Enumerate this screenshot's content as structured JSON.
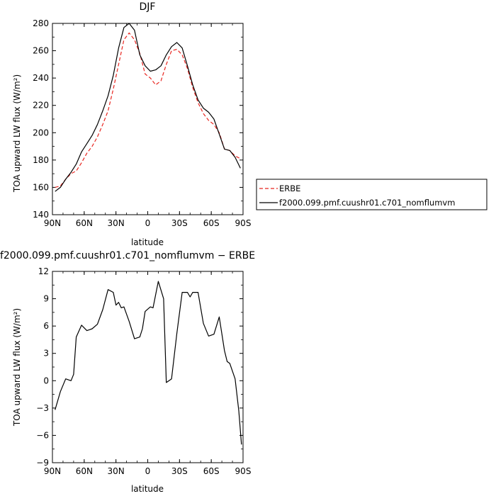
{
  "chart_data": [
    {
      "type": "line",
      "title": "DJF",
      "xlabel": "latitude",
      "ylabel": "TOA upward LW flux (W/m²)",
      "ylim": [
        140,
        280
      ],
      "xlim": [
        90,
        -90
      ],
      "x_ticks": [
        "90N",
        "60N",
        "30N",
        "0",
        "30S",
        "60S",
        "90S"
      ],
      "y_ticks": [
        "140",
        "160",
        "180",
        "200",
        "220",
        "240",
        "260",
        "280"
      ],
      "legend_position": "outside-right",
      "grid": false,
      "series": [
        {
          "name": "ERBE",
          "color": "#e8251f",
          "dash": "dashed",
          "x": [
            87.5,
            82.5,
            77.5,
            72.5,
            67.5,
            62.5,
            57.5,
            52.5,
            47.5,
            42.5,
            37.5,
            32.5,
            27.5,
            22.5,
            17.5,
            12.5,
            7.5,
            2.5,
            -2.5,
            -7.5,
            -12.5,
            -17.5,
            -22.5,
            -27.5,
            -32.5,
            -37.5,
            -42.5,
            -47.5,
            -52.5,
            -57.5,
            -62.5,
            -67.5,
            -72.5,
            -77.5,
            -82.5,
            -87.5
          ],
          "y": [
            160,
            161,
            166,
            170,
            172,
            178,
            185,
            190,
            197,
            206,
            216,
            232,
            250,
            268,
            273,
            268,
            258,
            243,
            240,
            235,
            238,
            250,
            260,
            261,
            257,
            247,
            233,
            222,
            214,
            209,
            206,
            200,
            188,
            187,
            183,
            181
          ]
        },
        {
          "name": "f2000.099.pmf.cuushr01.c701_nomflumvm",
          "color": "#000000",
          "dash": "solid",
          "x": [
            87.5,
            82.5,
            77.5,
            72.5,
            67.5,
            62.5,
            57.5,
            52.5,
            47.5,
            42.5,
            37.5,
            32.5,
            27.5,
            22.5,
            17.5,
            12.5,
            7.5,
            2.5,
            -2.5,
            -7.5,
            -12.5,
            -17.5,
            -22.5,
            -27.5,
            -32.5,
            -37.5,
            -42.5,
            -47.5,
            -52.5,
            -57.5,
            -62.5,
            -67.5,
            -72.5,
            -77.5,
            -82.5,
            -87.5
          ],
          "y": [
            157,
            160,
            166,
            171,
            177,
            186,
            192,
            198,
            206,
            216,
            227,
            242,
            262,
            277,
            280,
            275,
            257,
            249,
            245,
            246,
            249,
            257,
            263,
            266,
            262,
            249,
            235,
            224,
            218,
            215,
            210,
            199,
            188,
            187,
            182,
            174
          ]
        }
      ]
    },
    {
      "type": "line",
      "title": "f2000.099.pmf.cuushr01.c701_nomflumvm − ERBE",
      "xlabel": "latitude",
      "ylabel": "TOA upward LW flux (W/m²)",
      "ylim": [
        -9,
        12
      ],
      "xlim": [
        90,
        -90
      ],
      "x_ticks": [
        "90N",
        "60N",
        "30N",
        "0",
        "30S",
        "60S",
        "90S"
      ],
      "y_ticks": [
        "−9",
        "−6",
        "−3",
        "0",
        "3",
        "6",
        "9",
        "12"
      ],
      "grid": false,
      "series": [
        {
          "color": "#000000",
          "dash": "solid",
          "x": [
            87.5,
            82.5,
            77.5,
            72.5,
            70,
            67.5,
            62.5,
            57.5,
            52.5,
            47.5,
            42.5,
            37.5,
            32.5,
            30,
            27.5,
            25,
            22.5,
            17.5,
            12.5,
            7.5,
            5,
            2.5,
            -2.5,
            -5,
            -10,
            -15,
            -17.5,
            -22.5,
            -27.5,
            -32.5,
            -37.5,
            -40,
            -42.5,
            -47.5,
            -52.5,
            -57.5,
            -62.5,
            -67.5,
            -72.5,
            -75,
            -77.5,
            -82.5,
            -86,
            -88.5
          ],
          "y": [
            -3.2,
            -1.2,
            0.2,
            0,
            0.7,
            4.8,
            6.1,
            5.5,
            5.7,
            6.2,
            7.8,
            10,
            9.7,
            8.3,
            8.6,
            8.0,
            8.1,
            6.5,
            4.6,
            4.8,
            5.7,
            7.6,
            8.1,
            8.0,
            10.9,
            9.0,
            -0.2,
            0.2,
            5.2,
            9.7,
            9.7,
            9.2,
            9.7,
            9.7,
            6.3,
            4.9,
            5.1,
            7,
            3.3,
            2.1,
            1.9,
            0.2,
            -3.3,
            -7.0
          ]
        }
      ]
    }
  ]
}
